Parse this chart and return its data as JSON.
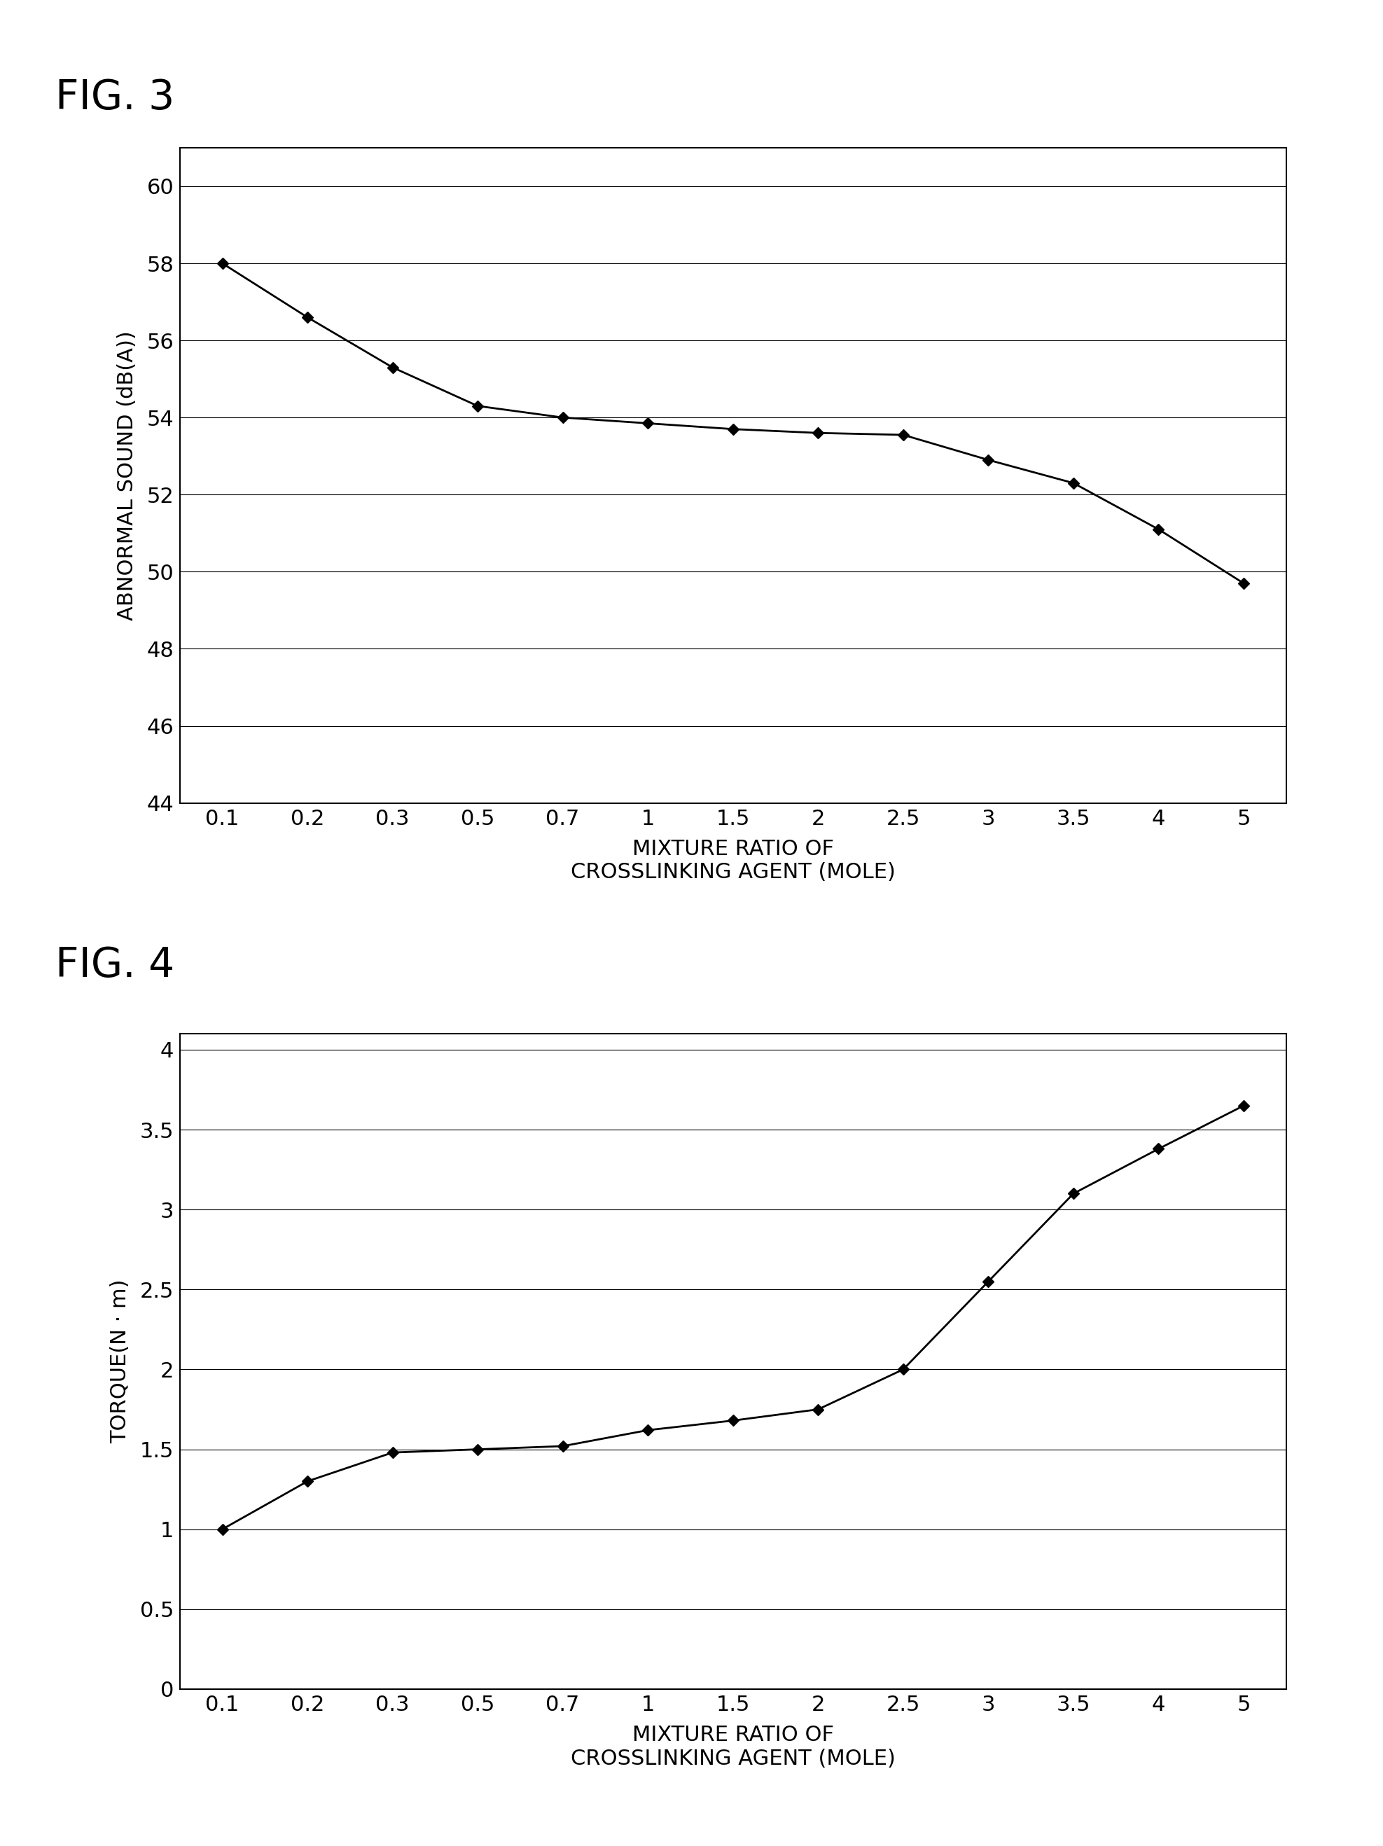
{
  "fig3": {
    "title": "FIG. 3",
    "xlabel_line1": "MIXTURE RATIO OF",
    "xlabel_line2": "CROSSLINKING AGENT (MOLE)",
    "ylabel": "ABNORMAL SOUND (dB(A))",
    "x_labels": [
      "0.1",
      "0.2",
      "0.3",
      "0.5",
      "0.7",
      "1",
      "1.5",
      "2",
      "2.5",
      "3",
      "3.5",
      "4",
      "5"
    ],
    "y": [
      58.0,
      56.6,
      55.3,
      54.3,
      54.0,
      53.85,
      53.7,
      53.6,
      53.55,
      52.9,
      52.3,
      51.1,
      49.7
    ],
    "ylim": [
      44,
      61
    ],
    "yticks": [
      44,
      46,
      48,
      50,
      52,
      54,
      56,
      58,
      60
    ],
    "line_color": "#000000",
    "marker": "D",
    "marker_size": 8,
    "line_width": 2.0
  },
  "fig4": {
    "title": "FIG. 4",
    "xlabel_line1": "MIXTURE RATIO OF",
    "xlabel_line2": "CROSSLINKING AGENT (MOLE)",
    "ylabel": "TORQUE(N · m)",
    "x_labels": [
      "0.1",
      "0.2",
      "0.3",
      "0.5",
      "0.7",
      "1",
      "1.5",
      "2",
      "2.5",
      "3",
      "3.5",
      "4",
      "5"
    ],
    "y": [
      1.0,
      1.3,
      1.48,
      1.5,
      1.52,
      1.62,
      1.68,
      1.75,
      2.0,
      2.55,
      3.1,
      3.38,
      3.65
    ],
    "ylim": [
      0,
      4.1
    ],
    "yticks": [
      0,
      0.5,
      1.0,
      1.5,
      2.0,
      2.5,
      3.0,
      3.5,
      4.0
    ],
    "ytick_labels": [
      "0",
      "0.5",
      "1",
      "1.5",
      "2",
      "2.5",
      "3",
      "3.5",
      "4"
    ],
    "line_color": "#000000",
    "marker": "D",
    "marker_size": 8,
    "line_width": 2.0
  },
  "background_color": "#ffffff",
  "title_fontsize": 42,
  "axis_label_fontsize": 22,
  "tick_fontsize": 22,
  "ylabel_fontsize": 22
}
